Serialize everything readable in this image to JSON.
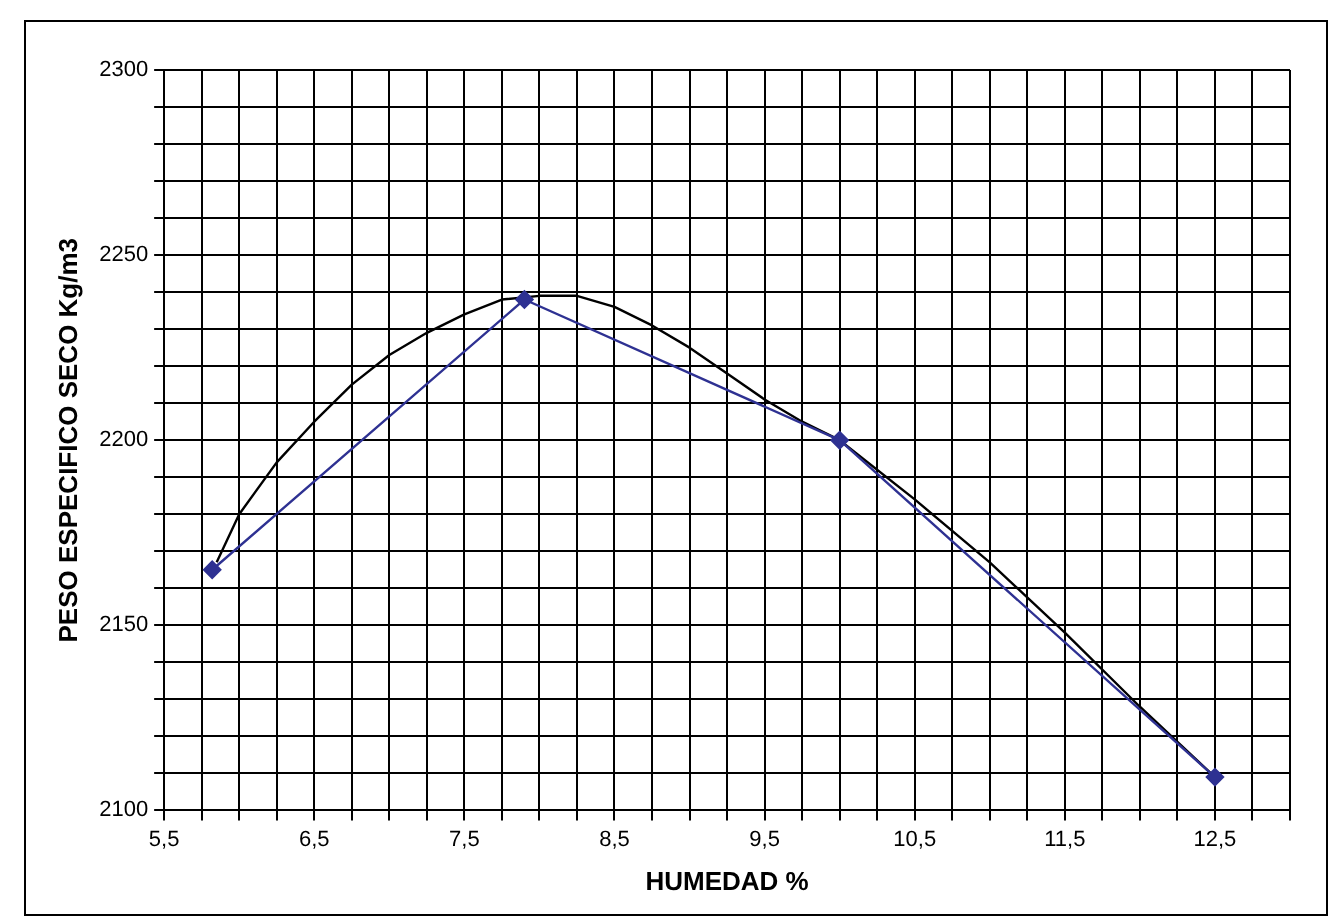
{
  "chart_data": {
    "type": "line",
    "xlabel": "HUMEDAD %",
    "ylabel": "PESO ESPECIFICO SECO Kg/m3",
    "xlim": [
      5.5,
      13
    ],
    "ylim": [
      2100,
      2300
    ],
    "xticks": [
      {
        "value": 5.5,
        "label": "5,5"
      },
      {
        "value": 5.75,
        "label": null
      },
      {
        "value": 6,
        "label": null
      },
      {
        "value": 6.25,
        "label": null
      },
      {
        "value": 6.5,
        "label": "6,5"
      },
      {
        "value": 6.75,
        "label": null
      },
      {
        "value": 7,
        "label": null
      },
      {
        "value": 7.25,
        "label": null
      },
      {
        "value": 7.5,
        "label": "7,5"
      },
      {
        "value": 7.75,
        "label": null
      },
      {
        "value": 8,
        "label": null
      },
      {
        "value": 8.25,
        "label": null
      },
      {
        "value": 8.5,
        "label": "8,5"
      },
      {
        "value": 8.75,
        "label": null
      },
      {
        "value": 9,
        "label": null
      },
      {
        "value": 9.25,
        "label": null
      },
      {
        "value": 9.5,
        "label": "9,5"
      },
      {
        "value": 9.75,
        "label": null
      },
      {
        "value": 10,
        "label": null
      },
      {
        "value": 10.25,
        "label": null
      },
      {
        "value": 10.5,
        "label": "10,5"
      },
      {
        "value": 10.75,
        "label": null
      },
      {
        "value": 11,
        "label": null
      },
      {
        "value": 11.25,
        "label": null
      },
      {
        "value": 11.5,
        "label": "11,5"
      },
      {
        "value": 11.75,
        "label": null
      },
      {
        "value": 12,
        "label": null
      },
      {
        "value": 12.25,
        "label": null
      },
      {
        "value": 12.5,
        "label": "12,5"
      },
      {
        "value": 12.75,
        "label": null
      },
      {
        "value": 13,
        "label": null
      }
    ],
    "yticks": [
      2100,
      {
        "value": 2110,
        "label": null
      },
      {
        "value": 2120,
        "label": null
      },
      {
        "value": 2130,
        "label": null
      },
      {
        "value": 2140,
        "label": null
      },
      2150,
      {
        "value": 2160,
        "label": null
      },
      {
        "value": 2170,
        "label": null
      },
      {
        "value": 2180,
        "label": null
      },
      {
        "value": 2190,
        "label": null
      },
      2200,
      {
        "value": 2210,
        "label": null
      },
      {
        "value": 2220,
        "label": null
      },
      {
        "value": 2230,
        "label": null
      },
      {
        "value": 2240,
        "label": null
      },
      2250,
      {
        "value": 2260,
        "label": null
      },
      {
        "value": 2270,
        "label": null
      },
      {
        "value": 2280,
        "label": null
      },
      {
        "value": 2290,
        "label": null
      },
      2300
    ],
    "grid": true,
    "series": [
      {
        "color": "#2e3192",
        "marker": "diamond",
        "x": [
          5.82,
          7.9,
          10,
          12.5
        ],
        "values": [
          2165,
          2238,
          2200,
          2109
        ]
      },
      {
        "color": "#000000",
        "marker": "none",
        "x": [
          5.85,
          6,
          6.25,
          6.5,
          6.75,
          7,
          7.25,
          7.5,
          7.75,
          8,
          8.25,
          8.5,
          8.75,
          9,
          9.25,
          9.5,
          9.75,
          10,
          10.5,
          11,
          11.5,
          12,
          12.5
        ],
        "values": [
          2167,
          2180,
          2194,
          2205,
          2215,
          2223,
          2229,
          2234,
          2238,
          2239,
          2239,
          2236,
          2231,
          2225,
          2218,
          2211,
          2205,
          2200,
          2184,
          2167,
          2148,
          2128,
          2109
        ]
      }
    ]
  }
}
